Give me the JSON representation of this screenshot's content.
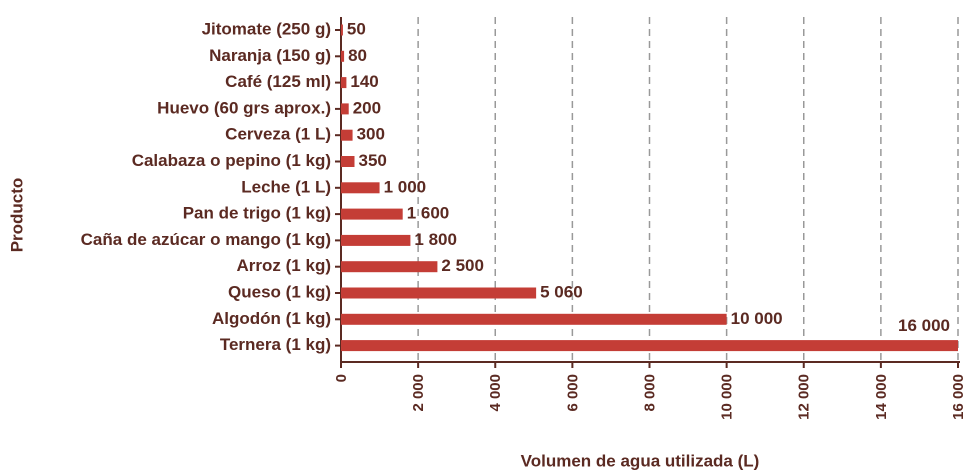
{
  "chart_data": {
    "type": "bar",
    "orientation": "horizontal",
    "xlabel": "Volumen de agua utilizada (L)",
    "ylabel": "Producto",
    "categories": [
      "Jitomate (250 g)",
      "Naranja (150 g)",
      "Café (125 ml)",
      "Huevo (60 grs aprox.)",
      "Cerveza (1 L)",
      "Calabaza o pepino (1 kg)",
      "Leche (1 L)",
      "Pan de trigo (1 kg)",
      "Caña de azúcar o mango (1 kg)",
      "Arroz (1 kg)",
      "Queso (1 kg)",
      "Algodón (1 kg)",
      "Ternera (1 kg)"
    ],
    "values": [
      50,
      80,
      140,
      200,
      300,
      350,
      1000,
      1600,
      1800,
      2500,
      5060,
      10000,
      16000
    ],
    "value_labels": [
      "50",
      "80",
      "140",
      "200",
      "300",
      "350",
      "1 000",
      "1 600",
      "1 800",
      "2 500",
      "5 060",
      "10 000",
      "16 000"
    ],
    "color": "#c43d36",
    "xlim": [
      0,
      16000
    ],
    "xticks": [
      0,
      {
        "value": 2000,
        "label": "2 000"
      },
      {
        "value": 4000,
        "label": "4 000"
      },
      {
        "value": 6000,
        "label": "6 000"
      },
      {
        "value": 8000,
        "label": "8 000"
      },
      {
        "value": 10000,
        "label": "10 000"
      },
      {
        "value": 12000,
        "label": "12 000"
      },
      {
        "value": 14000,
        "label": "14 000"
      },
      {
        "value": 16000,
        "label": "16 000"
      }
    ],
    "grid": true
  }
}
